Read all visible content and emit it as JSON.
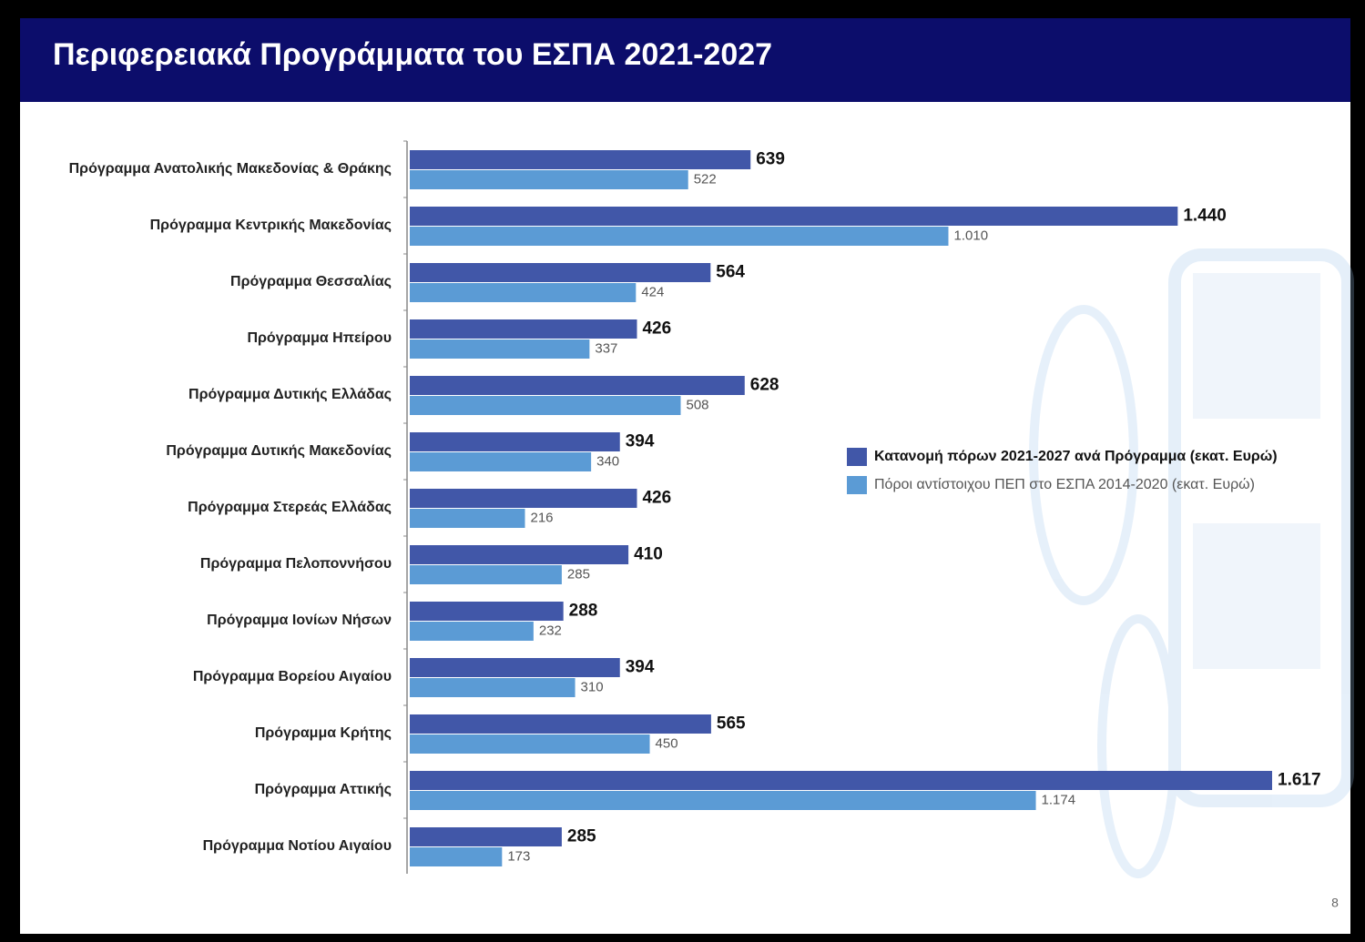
{
  "chart_data": {
    "type": "hbar",
    "title": "Περιφερειακά Προγράμματα του ΕΣΠΑ 2021-2027",
    "categories": [
      "Πρόγραμμα Ανατολικής Μακεδονίας & Θράκης",
      "Πρόγραμμα Κεντρικής Μακεδονίας",
      "Πρόγραμμα Θεσσαλίας",
      "Πρόγραμμα Ηπείρου",
      "Πρόγραμμα Δυτικής Ελλάδας",
      "Πρόγραμμα Δυτικής Μακεδονίας",
      "Πρόγραμμα Στερεάς Ελλάδας",
      "Πρόγραμμα Πελοποννήσου",
      "Πρόγραμμα Ιονίων Νήσων",
      "Πρόγραμμα Βορείου Αιγαίου",
      "Πρόγραμμα Κρήτης",
      "Πρόγραμμα Αττικής",
      "Πρόγραμμα Νοτίου Αιγαίου"
    ],
    "series": [
      {
        "name": "Κατανομή πόρων 2021-2027 ανά Πρόγραμμα (εκατ. Ευρώ)",
        "color": "#4157a8",
        "values": [
          639,
          1440,
          564,
          426,
          628,
          394,
          426,
          410,
          288,
          394,
          565,
          1617,
          285
        ],
        "value_labels": [
          "639",
          "1.440",
          "564",
          "426",
          "628",
          "394",
          "426",
          "410",
          "288",
          "394",
          "565",
          "1.617",
          "285"
        ]
      },
      {
        "name": "Πόροι αντίστοιχου ΠΕΠ στο ΕΣΠΑ 2014-2020 (εκατ. Ευρώ)",
        "color": "#5b9bd5",
        "values": [
          522,
          1010,
          424,
          337,
          508,
          340,
          216,
          285,
          232,
          310,
          450,
          1174,
          173
        ],
        "value_labels": [
          "522",
          "1.010",
          "424",
          "337",
          "508",
          "340",
          "216",
          "285",
          "232",
          "310",
          "450",
          "1.174",
          "173"
        ]
      }
    ]
  },
  "page_number": "8"
}
